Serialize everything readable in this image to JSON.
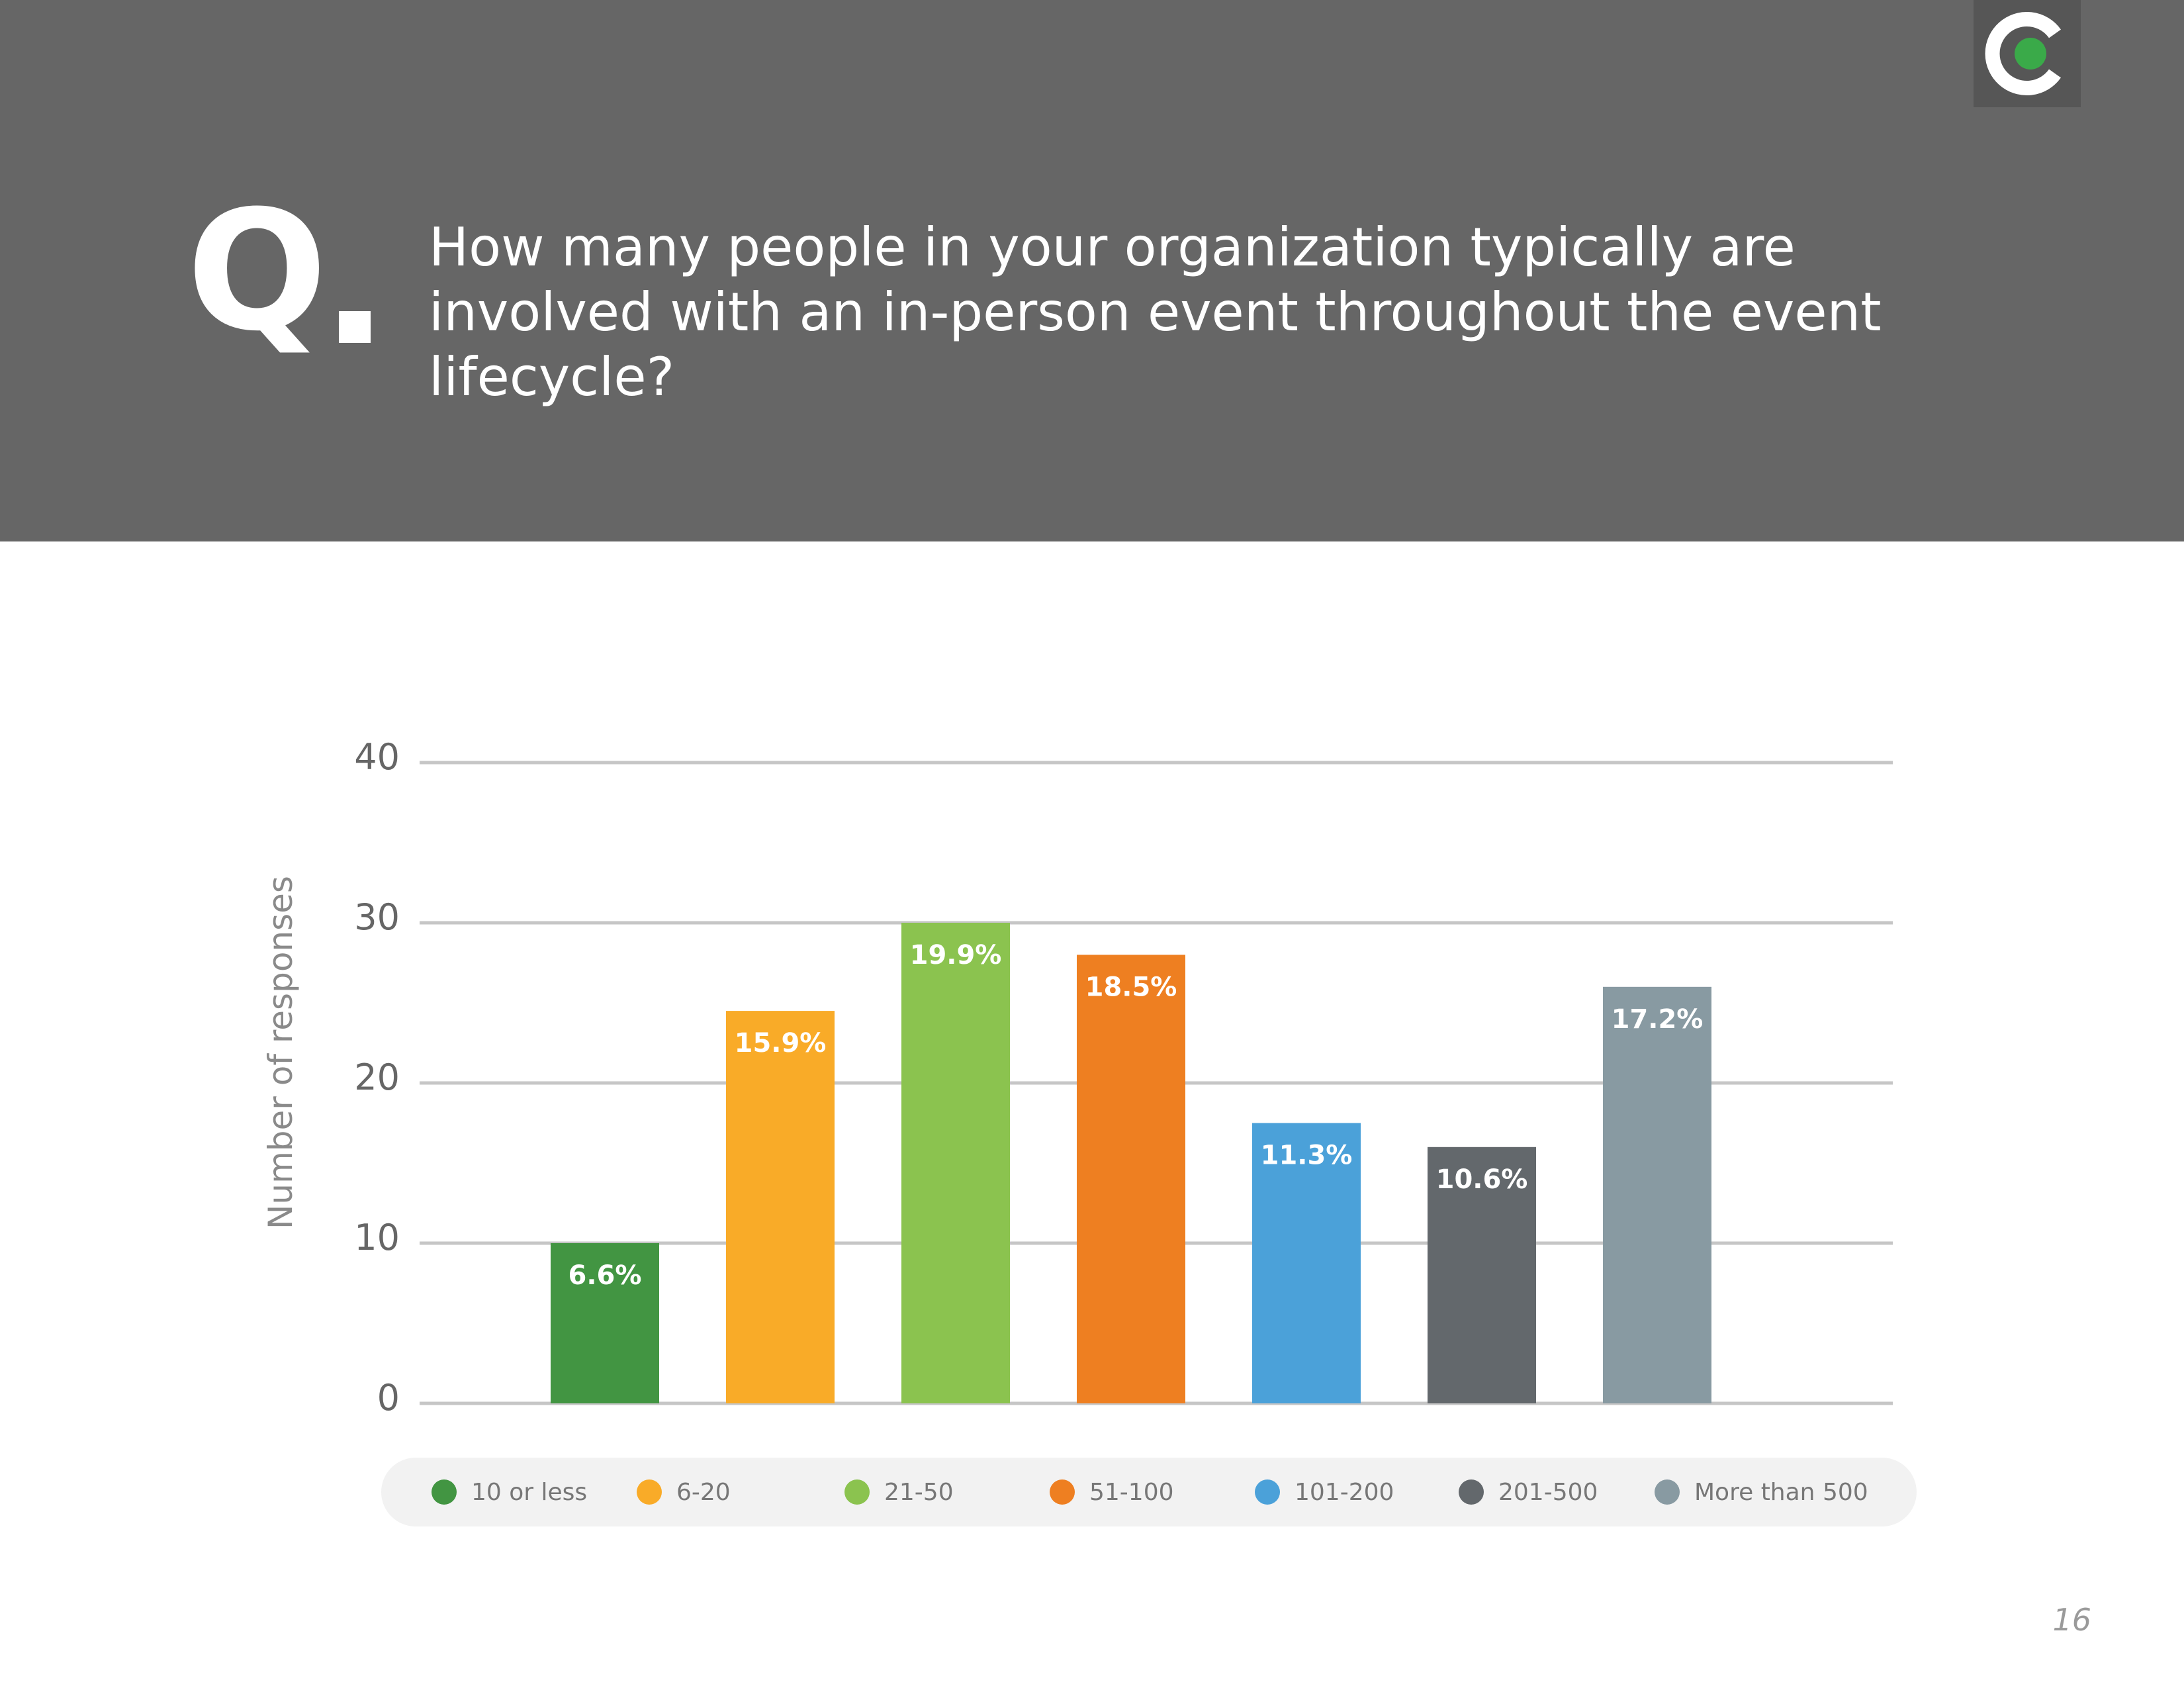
{
  "header": {
    "q_label": "Q",
    "question": "How many people in your organization typically are involved with an in-person event throughout the event lifecycle?",
    "logo_icon": "c-logo-icon",
    "logo_colors": {
      "ring": "#ffffff",
      "dot": "#3aaa49"
    }
  },
  "chart_data": {
    "type": "bar",
    "ylabel": "Number of responses",
    "ylim": [
      0,
      40
    ],
    "yticks": [
      "0",
      "10",
      "20",
      "30",
      "40"
    ],
    "grid": true,
    "legend_position": "bottom",
    "categories": [
      "10 or less",
      "6-20",
      "21-50",
      "51-100",
      "101-200",
      "201-500",
      "More than 500"
    ],
    "values": [
      10,
      24.5,
      30,
      28,
      17.5,
      16,
      26
    ],
    "data_labels": [
      "6.6%",
      "15.9%",
      "19.9%",
      "18.5%",
      "11.3%",
      "10.6%",
      "17.2%"
    ],
    "colors": [
      "#429542",
      "#f9ab28",
      "#8bc34f",
      "#ee7f21",
      "#4ba1d9",
      "#63686c",
      "#889aa2"
    ]
  },
  "footer": {
    "page_number": "16"
  }
}
